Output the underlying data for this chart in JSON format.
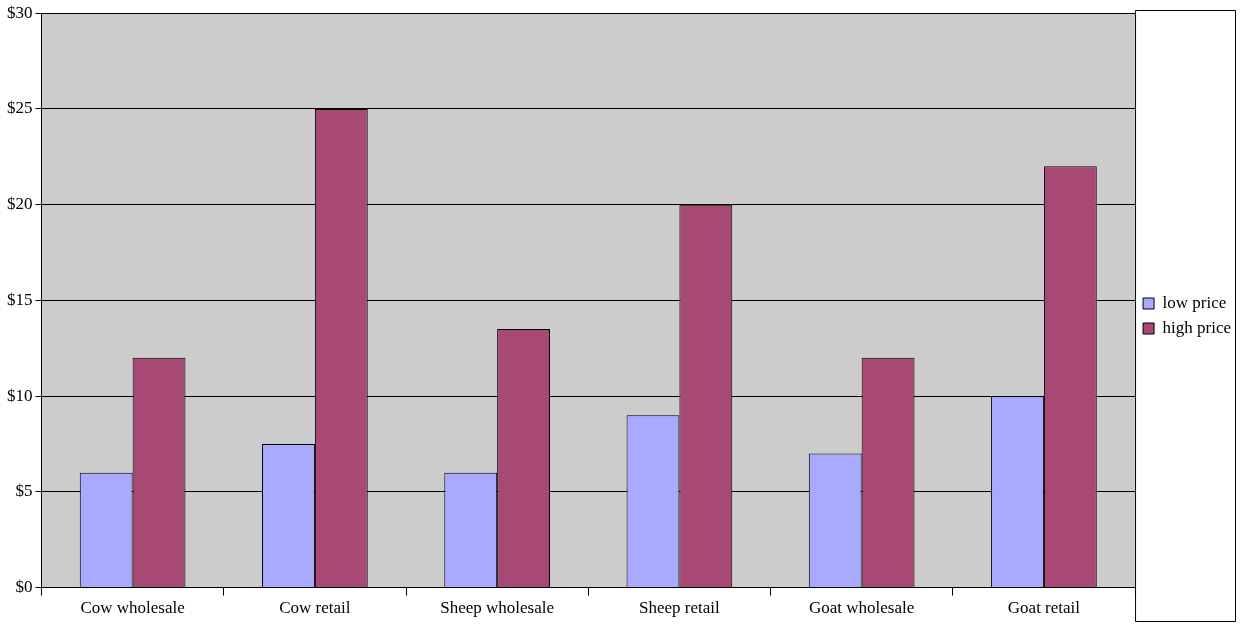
{
  "chart_data": {
    "type": "bar",
    "categories": [
      "Cow wholesale",
      "Cow retail",
      "Sheep wholesale",
      "Sheep retail",
      "Goat wholesale",
      "Goat retail"
    ],
    "series": [
      {
        "name": "low price",
        "color": "#a9aaff",
        "values": [
          6,
          7.5,
          6,
          9,
          7,
          10
        ]
      },
      {
        "name": "high price",
        "color": "#a84875",
        "values": [
          12,
          25,
          13.5,
          20,
          12,
          22
        ]
      }
    ],
    "ylim": [
      0,
      30
    ],
    "yticks": [
      {
        "value": 0,
        "label": "$0"
      },
      {
        "value": 5,
        "label": "$5"
      },
      {
        "value": 10,
        "label": "$10"
      },
      {
        "value": 15,
        "label": "$15"
      },
      {
        "value": 20,
        "label": "$20"
      },
      {
        "value": 25,
        "label": "$25"
      },
      {
        "value": 30,
        "label": "$30"
      }
    ],
    "grid": "y",
    "legend": "right"
  }
}
